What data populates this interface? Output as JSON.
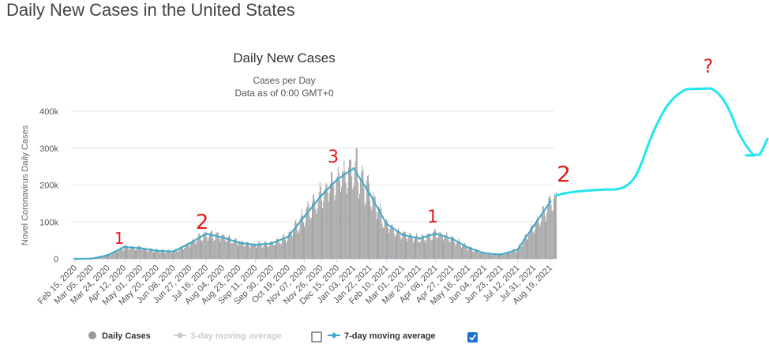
{
  "page": {
    "title": "Daily New Cases in the United States"
  },
  "chart_data": {
    "type": "bar",
    "title": "Daily New Cases",
    "subtitle_line1": "Cases per Day",
    "subtitle_line2": "Data as of 0:00 GMT+0",
    "ylabel": "Novel Coronavirus Daily Cases",
    "xlabel": "",
    "ylim": [
      0,
      400000
    ],
    "y_ticks": [
      0,
      100000,
      200000,
      300000,
      400000
    ],
    "y_tick_labels": [
      "0",
      "100k",
      "200k",
      "300k",
      "400k"
    ],
    "x_tick_labels": [
      "Feb 15, 2020",
      "Mar 05, 2020",
      "Mar 24, 2020",
      "Apr 12, 2020",
      "May 01, 2020",
      "May 20, 2020",
      "Jun 08, 2020",
      "Jun 27, 2020",
      "Jul 16, 2020",
      "Aug 04, 2020",
      "Aug 23, 2020",
      "Sep 11, 2020",
      "Sep 30, 2020",
      "Oct 19, 2020",
      "Nov 07, 2020",
      "Nov 26, 2020",
      "Dec 15, 2020",
      "Jan 03, 2021",
      "Jan 22, 2021",
      "Feb 10, 2021",
      "Mar 01, 2021",
      "Mar 20, 2021",
      "Apr 08, 2021",
      "Apr 27, 2021",
      "May 16, 2021",
      "Jun 04, 2021",
      "Jun 23, 2021",
      "Jul 12, 2021",
      "Jul 31, 2021",
      "Aug 19, 2021"
    ],
    "grid": true,
    "legend_position": "bottom",
    "legend": [
      {
        "name": "Daily Cases",
        "color": "#999999",
        "enabled": true
      },
      {
        "name": "3-day moving average",
        "color": "#cccccc",
        "enabled": false
      },
      {
        "name": "7-day moving average",
        "color": "#3ea9c9",
        "enabled": true
      }
    ],
    "checkbox_3day_checked": false,
    "checkbox_7day_checked": true,
    "bar_color": "#999999",
    "line_color": "#3ea9c9",
    "seven_day_avg_keypoints": {
      "x": [
        "Feb 15, 2020",
        "Mar 05, 2020",
        "Mar 24, 2020",
        "Apr 12, 2020",
        "May 01, 2020",
        "May 20, 2020",
        "Jun 08, 2020",
        "Jun 27, 2020",
        "Jul 16, 2020",
        "Aug 04, 2020",
        "Aug 23, 2020",
        "Sep 11, 2020",
        "Sep 30, 2020",
        "Oct 19, 2020",
        "Nov 07, 2020",
        "Nov 26, 2020",
        "Dec 15, 2020",
        "Jan 03, 2021",
        "Jan 22, 2021",
        "Feb 10, 2021",
        "Mar 01, 2021",
        "Mar 20, 2021",
        "Apr 08, 2021",
        "Apr 27, 2021",
        "May 16, 2021",
        "Jun 04, 2021",
        "Jun 23, 2021",
        "Jul 12, 2021",
        "Jul 31, 2021",
        "Aug 19, 2021"
      ],
      "values": [
        0,
        500,
        10000,
        32000,
        29000,
        22000,
        20000,
        42000,
        68000,
        58000,
        44000,
        38000,
        42000,
        60000,
        115000,
        170000,
        215000,
        245000,
        175000,
        95000,
        65000,
        55000,
        68000,
        55000,
        30000,
        15000,
        12000,
        25000,
        90000,
        155000
      ]
    },
    "annotations": {
      "marks": [
        "1",
        "2",
        "3",
        "1",
        "2",
        "?"
      ],
      "extrapolation_color": "#22e5ee"
    }
  }
}
